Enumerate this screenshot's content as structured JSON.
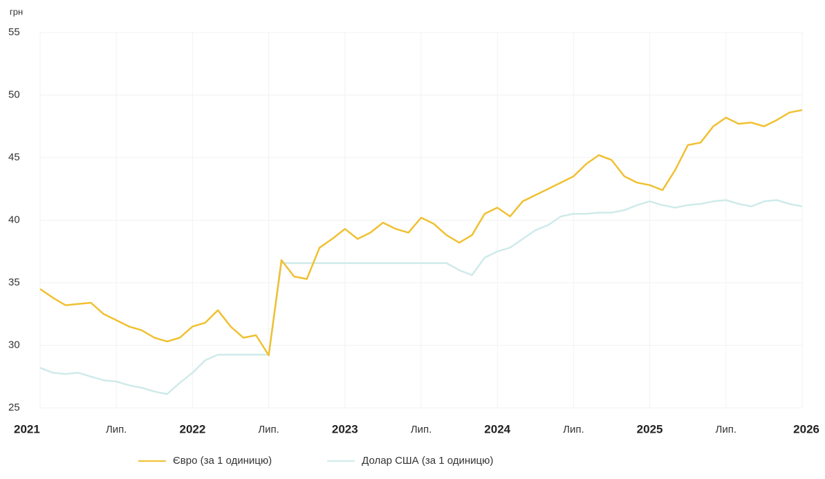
{
  "chart_data": {
    "type": "line",
    "y_unit": "грн",
    "x": [
      "2021-01",
      "2021-02",
      "2021-03",
      "2021-04",
      "2021-05",
      "2021-06",
      "2021-07",
      "2021-08",
      "2021-09",
      "2021-10",
      "2021-11",
      "2021-12",
      "2022-01",
      "2022-02",
      "2022-03",
      "2022-04",
      "2022-05",
      "2022-06",
      "2022-07",
      "2022-08",
      "2022-09",
      "2022-10",
      "2022-11",
      "2022-12",
      "2023-01",
      "2023-02",
      "2023-03",
      "2023-04",
      "2023-05",
      "2023-06",
      "2023-07",
      "2023-08",
      "2023-09",
      "2023-10",
      "2023-11",
      "2023-12",
      "2024-01",
      "2024-02",
      "2024-03",
      "2024-04",
      "2024-05",
      "2024-06",
      "2024-07",
      "2024-08",
      "2024-09",
      "2024-10",
      "2024-11",
      "2024-12",
      "2025-01",
      "2025-02",
      "2025-03",
      "2025-04",
      "2025-05",
      "2025-06",
      "2025-07",
      "2025-08",
      "2025-09",
      "2025-10",
      "2025-11",
      "2025-12",
      "2026-01"
    ],
    "series": [
      {
        "name": "Євро (за 1 одиницю)",
        "color": "#f0c030",
        "values": [
          34.5,
          33.8,
          33.2,
          33.3,
          33.4,
          32.5,
          32.0,
          31.5,
          31.2,
          30.6,
          30.3,
          30.6,
          31.5,
          31.8,
          32.8,
          31.5,
          30.6,
          30.8,
          29.2,
          36.8,
          35.5,
          35.3,
          37.8,
          38.5,
          39.3,
          38.5,
          39.0,
          39.8,
          39.3,
          39.0,
          40.2,
          39.7,
          38.8,
          38.2,
          38.8,
          40.5,
          41.0,
          40.3,
          41.5,
          42.0,
          42.5,
          43.0,
          43.5,
          44.5,
          45.2,
          44.8,
          43.5,
          43.0,
          42.8,
          42.4,
          44.0,
          46.0,
          46.2,
          47.5,
          48.2,
          47.7,
          47.8,
          47.5,
          48.0,
          48.6,
          48.8
        ]
      },
      {
        "name": "Долар США (за 1 одиницю)",
        "color": "#cfeaea",
        "values": [
          28.2,
          27.8,
          27.7,
          27.8,
          27.5,
          27.2,
          27.1,
          26.8,
          26.6,
          26.3,
          26.1,
          27.0,
          27.8,
          28.8,
          29.25,
          29.25,
          29.25,
          29.25,
          29.25,
          36.57,
          36.57,
          36.57,
          36.57,
          36.57,
          36.57,
          36.57,
          36.57,
          36.57,
          36.57,
          36.57,
          36.57,
          36.57,
          36.57,
          36.0,
          35.6,
          37.0,
          37.5,
          37.8,
          38.5,
          39.2,
          39.6,
          40.3,
          40.5,
          40.5,
          40.6,
          40.6,
          40.8,
          41.2,
          41.5,
          41.2,
          41.0,
          41.2,
          41.3,
          41.5,
          41.6,
          41.3,
          41.1,
          41.5,
          41.6,
          41.3,
          41.1
        ]
      }
    ],
    "xlim": [
      "2021-01",
      "2026-01"
    ],
    "xticks": [
      {
        "value": "2021-01",
        "label": "2021"
      },
      {
        "value": "2021-07",
        "label": "Лип."
      },
      {
        "value": "2022-01",
        "label": "2022"
      },
      {
        "value": "2022-07",
        "label": "Лип."
      },
      {
        "value": "2023-01",
        "label": "2023"
      },
      {
        "value": "2023-07",
        "label": "Лип."
      },
      {
        "value": "2024-01",
        "label": "2024"
      },
      {
        "value": "2024-07",
        "label": "Лип."
      },
      {
        "value": "2025-01",
        "label": "2025"
      },
      {
        "value": "2025-07",
        "label": "Лип."
      },
      {
        "value": "2026-01",
        "label": "2026"
      }
    ],
    "ylim": [
      25,
      55
    ],
    "yticks": [
      25,
      30,
      35,
      40,
      45,
      50,
      55
    ],
    "grid": true,
    "legend": "bottom"
  }
}
